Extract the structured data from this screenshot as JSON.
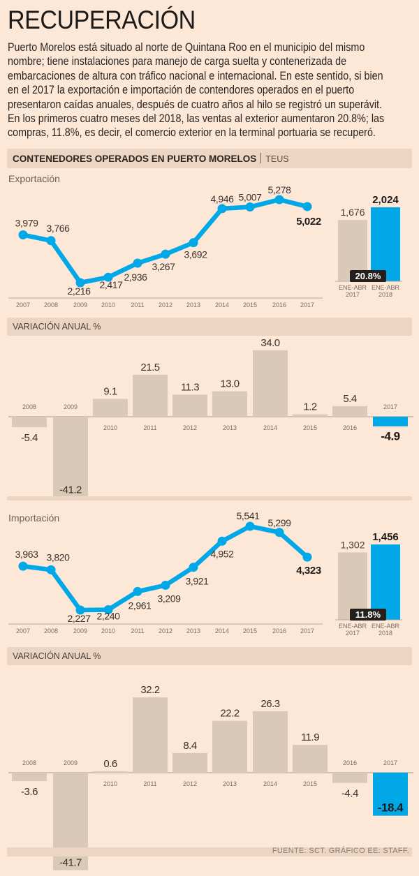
{
  "title": "RECUPERACIÓN",
  "intro_lines": [
    "Puerto Morelos está situado al norte de Quintana Roo en el municipio del mismo",
    "nombre; tiene instalaciones para manejo de carga suelta y contenerizada de",
    "embarcaciones de altura con tráfico nacional e internacional. En este sentido, si bien",
    "en el 2017 la exportación e importación de contendores operados en el puerto",
    "presentaron caídas anuales, después de cuatro años al hilo se registró un superávit.",
    "En los primeros cuatro meses del 2018, las ventas al exterior aumentaron 20.8%; las",
    "compras, 11.8%, es decir, el comercio exterior en la terminal portuaria se recuperó."
  ],
  "header": {
    "title": "CONTENEDORES OPERADOS EN PUERTO MORELOS",
    "unit": "TEUS"
  },
  "variation_header": "VARIACIÓN ANUAL %",
  "footer": "FUENTE: SCT.  GRÁFICO EE: STAFF.",
  "colors": {
    "background": "#fde7d7",
    "accent": "#00a8e8",
    "bar_neutral": "#dbc9b8",
    "header_bar": "#ecd5c2",
    "badge": "#231f1c"
  },
  "chart_data": [
    {
      "type": "line",
      "title": "Exportación",
      "x": [
        "2007",
        "2008",
        "2009",
        "2010",
        "2011",
        "2012",
        "2013",
        "2014",
        "2015",
        "2016",
        "2017"
      ],
      "values": [
        3979,
        3766,
        2216,
        2417,
        2936,
        3267,
        3692,
        4946,
        5007,
        5278,
        5022
      ],
      "labels": [
        "3,979",
        "3,766",
        "2,216",
        "2,417",
        "2,936",
        "3,267",
        "3,692",
        "4,946",
        "5,007",
        "5,278",
        "5,022"
      ],
      "unit": "TEUS",
      "grid": false
    },
    {
      "type": "bar",
      "title": "Exportación ENE-ABR",
      "categories": [
        "ENE-ABR 2017",
        "ENE-ABR 2018"
      ],
      "category_lines": [
        [
          "ENE-ABR",
          "2017"
        ],
        [
          "ENE-ABR",
          "2018"
        ]
      ],
      "values": [
        1676,
        2024
      ],
      "labels": [
        "1,676",
        "2,024"
      ],
      "change_label": "20.8%"
    },
    {
      "type": "bar",
      "title": "VARIACIÓN ANUAL % (Exportación)",
      "categories": [
        "2008",
        "2009",
        "2010",
        "2011",
        "2012",
        "2013",
        "2014",
        "2015",
        "2016",
        "2017"
      ],
      "values": [
        -5.4,
        -41.2,
        9.1,
        21.5,
        11.3,
        13.0,
        34.0,
        1.2,
        5.4,
        -4.9
      ],
      "labels": [
        "-5.4",
        "-41.2",
        "9.1",
        "21.5",
        "11.3",
        "13.0",
        "34.0",
        "1.2",
        "5.4",
        "-4.9"
      ],
      "ylim": [
        -41.2,
        34.0
      ]
    },
    {
      "type": "line",
      "title": "Importación",
      "x": [
        "2007",
        "2008",
        "2009",
        "2010",
        "2011",
        "2012",
        "2013",
        "2014",
        "2015",
        "2016",
        "2017"
      ],
      "values": [
        3963,
        3820,
        2227,
        2240,
        2961,
        3209,
        3921,
        4952,
        5541,
        5299,
        4323
      ],
      "labels": [
        "3,963",
        "3,820",
        "2,227",
        "2,240",
        "2,961",
        "3,209",
        "3,921",
        "4,952",
        "5,541",
        "5,299",
        "4,323"
      ],
      "unit": "TEUS",
      "grid": false
    },
    {
      "type": "bar",
      "title": "Importación ENE-ABR",
      "categories": [
        "ENE-ABR 2017",
        "ENE-ABR 2018"
      ],
      "category_lines": [
        [
          "ENE-ABR",
          "2017"
        ],
        [
          "ENE-ABR",
          "2018"
        ]
      ],
      "values": [
        1302,
        1456
      ],
      "labels": [
        "1,302",
        "1,456"
      ],
      "change_label": "11.8%"
    },
    {
      "type": "bar",
      "title": "VARIACIÓN ANUAL % (Importación)",
      "categories": [
        "2008",
        "2009",
        "2010",
        "2011",
        "2012",
        "2013",
        "2014",
        "2015",
        "2016",
        "2017"
      ],
      "values": [
        -3.6,
        -41.7,
        0.6,
        32.2,
        8.4,
        22.2,
        26.3,
        11.9,
        -4.4,
        -18.4
      ],
      "labels": [
        "-3.6",
        "-41.7",
        "0.6",
        "32.2",
        "8.4",
        "22.2",
        "26.3",
        "11.9",
        "-4.4",
        "-18.4"
      ],
      "ylim": [
        -41.7,
        32.2
      ]
    }
  ]
}
